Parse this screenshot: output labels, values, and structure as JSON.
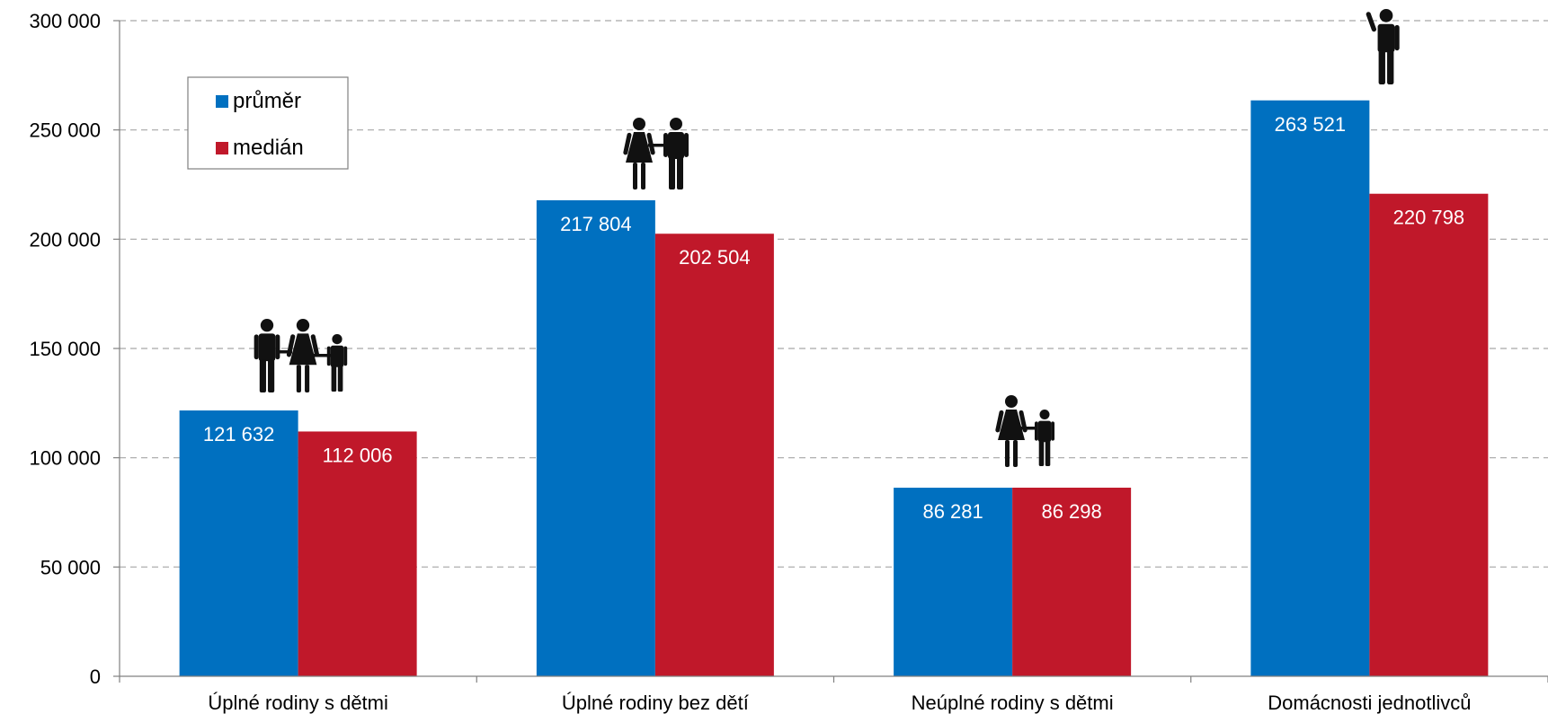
{
  "chart_data": {
    "type": "bar",
    "categories": [
      "Úplné rodiny s dětmi",
      "Úplné rodiny bez dětí",
      "Neúplné rodiny s dětmi",
      "Domácnosti jednotlivců"
    ],
    "category_icons": [
      "family-two-adults-child-icon",
      "couple-icon",
      "adult-with-child-icon",
      "single-person-icon"
    ],
    "series": [
      {
        "name": "průměr",
        "color": "#0070C0",
        "values": [
          121632,
          217804,
          86281,
          263521
        ],
        "labels": [
          "121 632",
          "217 804",
          "86 281",
          "263 521"
        ]
      },
      {
        "name": "medián",
        "color": "#C0182A",
        "values": [
          112006,
          202504,
          86298,
          220798
        ],
        "labels": [
          "112 006",
          "202 504",
          "86 298",
          "220 798"
        ]
      }
    ],
    "ylim": [
      0,
      300000
    ],
    "yticks": [
      0,
      50000,
      100000,
      150000,
      200000,
      250000,
      300000
    ],
    "ytick_labels": [
      "0",
      "50 000",
      "100 000",
      "150 000",
      "200 000",
      "250 000",
      "300 000"
    ],
    "grid": true,
    "legend_position": "top-left"
  }
}
